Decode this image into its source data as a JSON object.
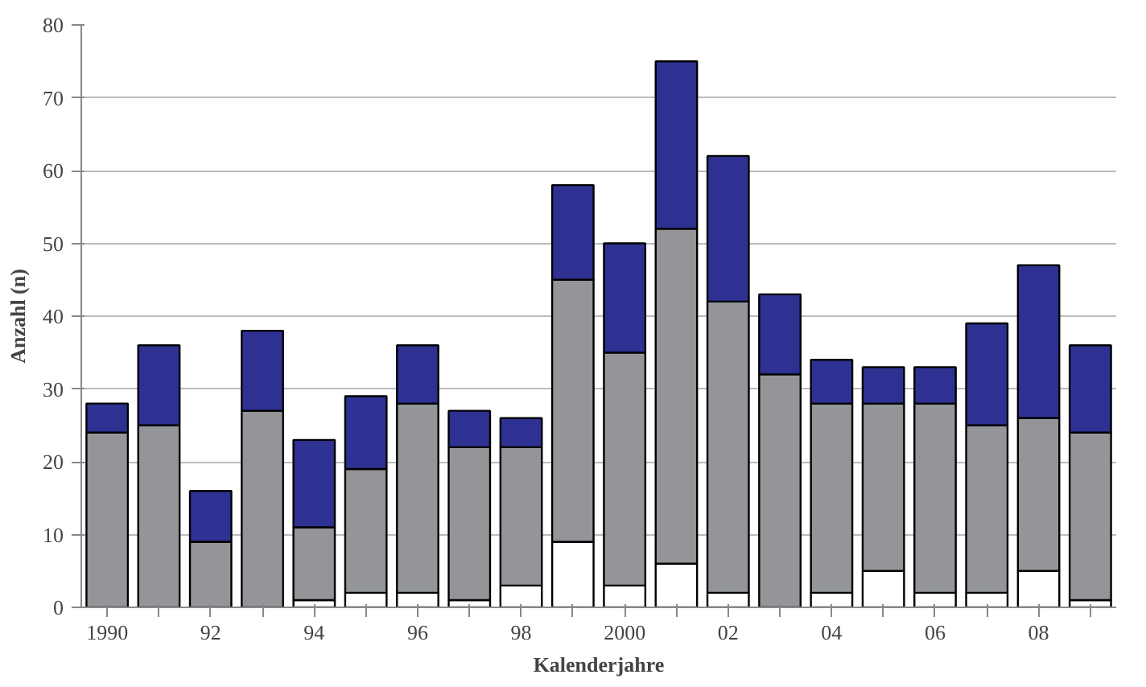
{
  "chart_data": {
    "type": "bar",
    "stacked": true,
    "xlabel": "Kalenderjahre",
    "ylabel": "Anzahl (n)",
    "categories": [
      "1990",
      null,
      "92",
      null,
      "94",
      null,
      "96",
      null,
      "98",
      null,
      "2000",
      null,
      "02",
      null,
      "04",
      null,
      "06",
      null,
      "08",
      null
    ],
    "series": [
      {
        "color": "#ffffff",
        "values": [
          0,
          0,
          0,
          0,
          1,
          2,
          2,
          1,
          3,
          9,
          3,
          6,
          2,
          0,
          2,
          5,
          2,
          2,
          5,
          1
        ]
      },
      {
        "color": "#939598",
        "values": [
          24,
          25,
          9,
          27,
          10,
          17,
          26,
          21,
          19,
          36,
          32,
          46,
          40,
          32,
          26,
          23,
          26,
          23,
          21,
          23
        ]
      },
      {
        "color": "#2e3192",
        "values": [
          4,
          11,
          7,
          11,
          12,
          10,
          8,
          5,
          4,
          13,
          15,
          23,
          20,
          11,
          6,
          5,
          5,
          14,
          21,
          12
        ]
      }
    ],
    "ylim": [
      0,
      80
    ],
    "yticks": [
      0,
      10,
      20,
      30,
      40,
      50,
      60,
      70,
      80
    ],
    "grid": "y"
  }
}
